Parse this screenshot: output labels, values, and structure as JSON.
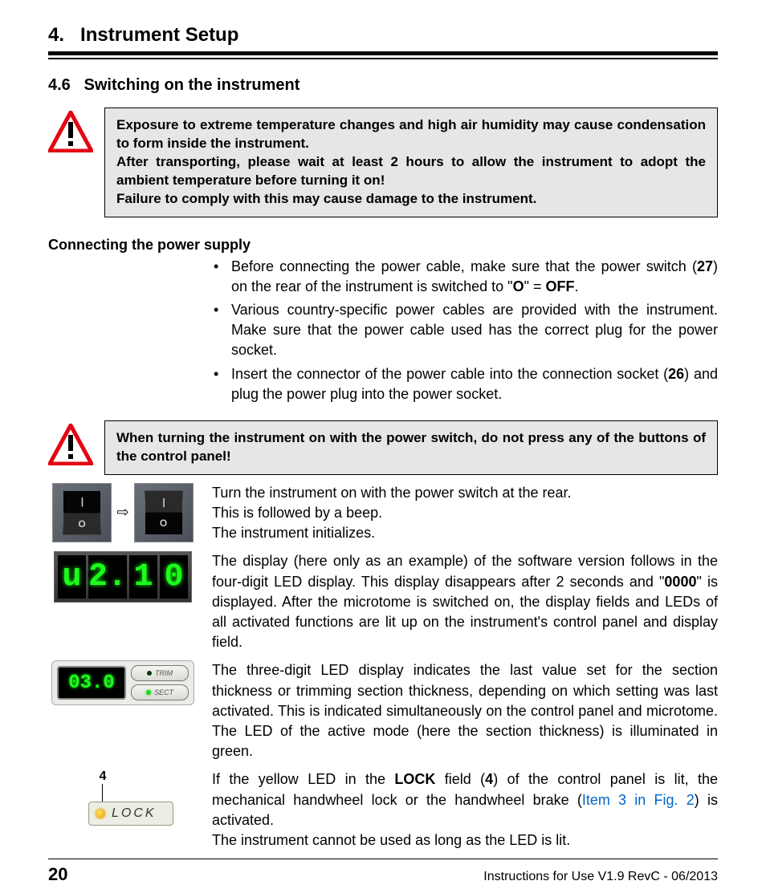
{
  "chapter": {
    "number": "4.",
    "title": "Instrument Setup"
  },
  "section": {
    "number": "4.6",
    "title": "Switching on the instrument"
  },
  "warning1_html": "Exposure to extreme temperature changes and high air humidity may cause condensation to form inside the instrument.<br>After transporting, please wait at least 2 hours to allow the instrument to adopt the ambient temperature before turning it on!<br>Failure to comply with this may cause damage to the instrument.",
  "subheading1": "Connecting the power supply",
  "bullets": [
    "Before connecting the power cable, make sure that the power switch (<b>27</b>) on the rear of the instrument is switched to \"<b>O</b>\" = <b>OFF</b>.",
    "Various country-specific power cables are provided with the instrument. Make sure that the power cable used has the correct plug for the power socket.",
    "Insert the connector of the power cable into the connection socket (<b>26</b>) and plug the power plug into the power socket."
  ],
  "warning2_html": "When turning the instrument on with the power switch, do not press any of the buttons of the control panel!",
  "para_switch": "Turn the instrument on with the power switch at the rear.<br>This is followed by a beep.<br>The instrument initializes.",
  "para_version_html": "The display (here only as an example) of the software version follows in the four-digit LED display. This display disappears after 2 seconds and \"<b>0000</b>\" is displayed. After the microtome is switched on, the display fields and LEDs of all activated functions are lit up on the instrument's control panel and display field.",
  "para_030": "The three-digit LED display indicates the last value set for the section thickness or trimming section thickness, depending on which setting was last activated. This is indicated simultaneously on the control panel and microtome. The LED of the active mode (here the section thickness) is illuminated in green.",
  "para_lock_html": "If the yellow LED in the <b>LOCK</b> field (<b>4</b>) of the control panel is lit, the mechanical handwheel lock or the handwheel brake (<span class=\"link\">Item 3 in Fig. 2</span>) is activated.<br>The instrument cannot be used as long as the LED is lit.",
  "led4_digits": [
    "u",
    "2.",
    "1",
    "0"
  ],
  "panel030_value": "03.0",
  "panel030_btns": {
    "trim": "TRIM",
    "sect": "SECT"
  },
  "lock": {
    "callout": "4",
    "label": "LOCK"
  },
  "footer": {
    "page": "20",
    "text": "Instructions for Use V1.9 RevC - 06/2013"
  },
  "colors": {
    "led_green": "#1bff1b",
    "lock_yellow": "#e0a000",
    "link": "#0066cc",
    "warning_red": "#e30613",
    "warning_bg": "#e6e6e6"
  }
}
